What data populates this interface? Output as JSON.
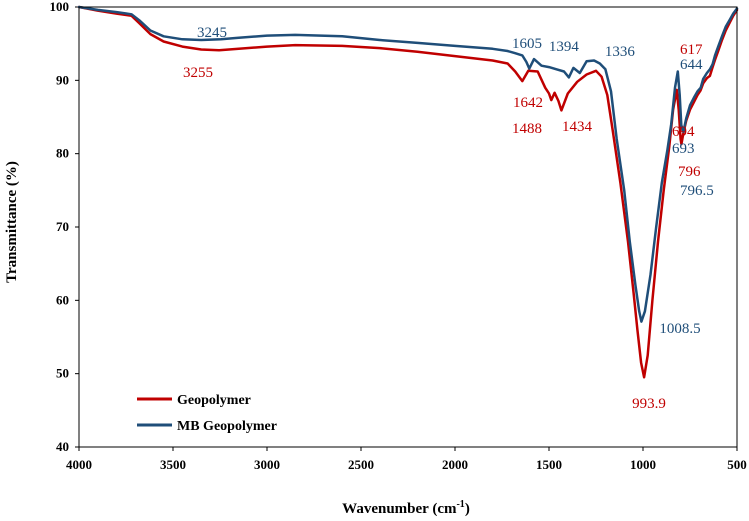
{
  "chart_data": {
    "type": "line",
    "title": "",
    "xlabel": "Wavenumber (cm",
    "xlabel_sup": "-1",
    "xlabel_end": ")",
    "ylabel": "Transmittance (%)",
    "xlim": [
      4000,
      500
    ],
    "ylim": [
      40,
      100
    ],
    "x_ticks": [
      4000,
      3500,
      3000,
      2500,
      2000,
      1500,
      1000,
      500
    ],
    "y_ticks": [
      40,
      50,
      60,
      70,
      80,
      90,
      100
    ],
    "grid": false,
    "legend_position": "bottom-left",
    "series": [
      {
        "name": "Geopolymer",
        "color": "#C00000",
        "x": [
          4000,
          3900,
          3800,
          3720,
          3680,
          3620,
          3550,
          3450,
          3350,
          3255,
          3150,
          3000,
          2850,
          2600,
          2400,
          2200,
          2000,
          1800,
          1720,
          1680,
          1642,
          1610,
          1560,
          1520,
          1500,
          1488,
          1470,
          1450,
          1434,
          1400,
          1350,
          1300,
          1250,
          1220,
          1190,
          1160,
          1120,
          1080,
          1050,
          1030,
          1010,
          993.9,
          975,
          950,
          920,
          890,
          860,
          840,
          820,
          810,
          800,
          796,
          785,
          770,
          750,
          730,
          710,
          694,
          680,
          660,
          644,
          630,
          617,
          600,
          580,
          560,
          540,
          520,
          500
        ],
        "values": [
          100,
          99.5,
          99.1,
          98.8,
          97.8,
          96.3,
          95.3,
          94.6,
          94.2,
          94.1,
          94.3,
          94.6,
          94.8,
          94.7,
          94.4,
          93.9,
          93.3,
          92.7,
          92.3,
          91.2,
          89.9,
          91.3,
          91.2,
          89.0,
          88.2,
          87.3,
          88.3,
          87.2,
          85.9,
          88.2,
          89.8,
          90.8,
          91.3,
          90.5,
          88.0,
          83.0,
          76.0,
          68.0,
          61.0,
          56.0,
          51.5,
          49.5,
          52.5,
          60.0,
          68.0,
          75.0,
          81.0,
          86.0,
          88.7,
          86.0,
          82.0,
          81.3,
          82.8,
          84.5,
          86.0,
          87.0,
          88.0,
          88.6,
          89.6,
          90.3,
          90.6,
          91.8,
          92.8,
          94.0,
          95.5,
          96.8,
          97.8,
          98.8,
          99.6
        ]
      },
      {
        "name": "MB Geopolymer",
        "color": "#1F4E79",
        "x": [
          4000,
          3900,
          3800,
          3720,
          3680,
          3620,
          3550,
          3450,
          3350,
          3245,
          3150,
          3000,
          2850,
          2600,
          2400,
          2200,
          2000,
          1800,
          1720,
          1680,
          1642,
          1620,
          1605,
          1580,
          1540,
          1500,
          1460,
          1420,
          1394,
          1370,
          1336,
          1300,
          1260,
          1230,
          1200,
          1170,
          1140,
          1100,
          1070,
          1040,
          1020,
          1008.5,
          990,
          960,
          930,
          900,
          870,
          850,
          830,
          815,
          805,
          796.5,
          785,
          770,
          750,
          730,
          710,
          693,
          680,
          660,
          644,
          630,
          617,
          600,
          580,
          560,
          540,
          520,
          500
        ],
        "values": [
          100,
          99.6,
          99.3,
          99.0,
          98.2,
          96.8,
          96.0,
          95.6,
          95.5,
          95.6,
          95.8,
          96.1,
          96.2,
          96.0,
          95.5,
          95.1,
          94.7,
          94.3,
          94.0,
          93.7,
          93.4,
          92.5,
          91.6,
          92.9,
          92.0,
          91.8,
          91.5,
          91.2,
          90.4,
          91.7,
          91.0,
          92.6,
          92.7,
          92.3,
          91.5,
          88.5,
          82.0,
          75.0,
          68.0,
          62.0,
          58.5,
          57.1,
          58.5,
          63.5,
          70.0,
          76.0,
          80.5,
          84.0,
          89.0,
          91.2,
          88.0,
          83.9,
          83.0,
          84.8,
          86.6,
          87.6,
          88.5,
          89.0,
          90.2,
          91.0,
          91.5,
          92.2,
          93.4,
          94.6,
          96.0,
          97.3,
          98.2,
          99.1,
          99.8
        ]
      }
    ],
    "annotations": [
      {
        "text": "3245",
        "series": 1
      },
      {
        "text": "3255",
        "series": 0
      },
      {
        "text": "1605",
        "series": 1
      },
      {
        "text": "1394",
        "series": 1
      },
      {
        "text": "1336",
        "series": 1
      },
      {
        "text": "1642",
        "series": 0
      },
      {
        "text": "1488",
        "series": 0
      },
      {
        "text": "1434",
        "series": 0
      },
      {
        "text": "617",
        "series": 0
      },
      {
        "text": "644",
        "series": 1
      },
      {
        "text": "694",
        "series": 0
      },
      {
        "text": "693",
        "series": 1
      },
      {
        "text": "796",
        "series": 0
      },
      {
        "text": "796.5",
        "series": 1
      },
      {
        "text": "1008.5",
        "series": 1
      },
      {
        "text": "993.9",
        "series": 0
      }
    ]
  }
}
